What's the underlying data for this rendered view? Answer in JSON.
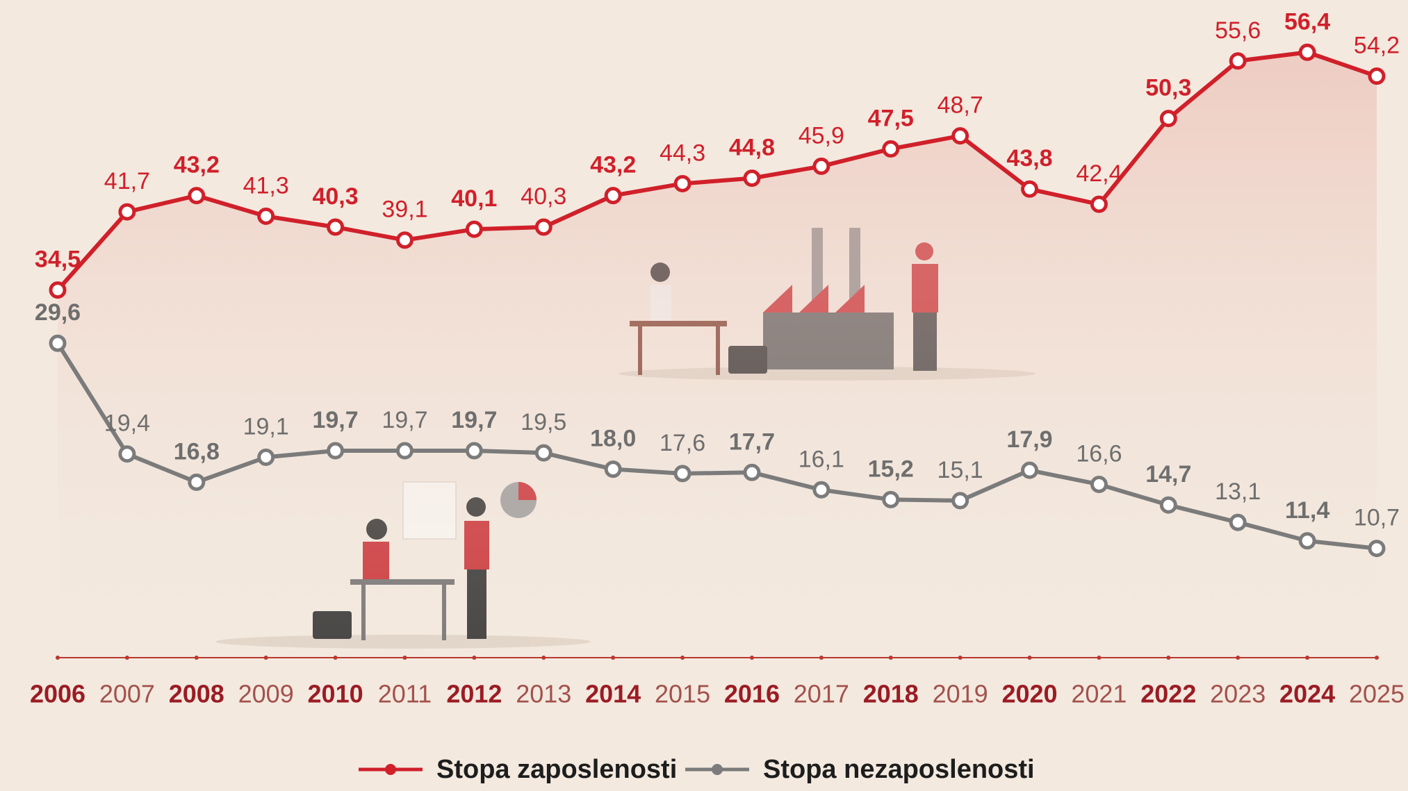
{
  "chart_data": {
    "type": "line",
    "categories": [
      "2006",
      "2007",
      "2008",
      "2009",
      "2010",
      "2011",
      "2012",
      "2013",
      "2014",
      "2015",
      "2016",
      "2017",
      "2018",
      "2019",
      "2020",
      "2021",
      "2022",
      "2023",
      "2024",
      "2025"
    ],
    "ylim": [
      0,
      60
    ],
    "series": [
      {
        "name": "Stopa zaposlenosti",
        "color": "#d0202a",
        "values": [
          34.5,
          41.7,
          43.2,
          41.3,
          40.3,
          39.1,
          40.1,
          40.3,
          43.2,
          44.3,
          44.8,
          45.9,
          47.5,
          48.7,
          43.8,
          42.4,
          50.3,
          55.6,
          56.4,
          54.2
        ],
        "value_labels": [
          "34,5",
          "41,7",
          "43,2",
          "41,3",
          "40,3",
          "39,1",
          "40,1",
          "40,3",
          "43,2",
          "44,3",
          "44,8",
          "45,9",
          "47,5",
          "48,7",
          "43,8",
          "42,4",
          "50,3",
          "55,6",
          "56,4",
          "54,2"
        ]
      },
      {
        "name": "Stopa nezaposlenosti",
        "color": "#7b7b7b",
        "values": [
          29.6,
          19.4,
          16.8,
          19.1,
          19.7,
          19.7,
          19.7,
          19.5,
          18.0,
          17.6,
          17.7,
          16.1,
          15.2,
          15.1,
          17.9,
          16.6,
          14.7,
          13.1,
          11.4,
          10.7
        ],
        "value_labels": [
          "29,6",
          "19,4",
          "16,8",
          "19,1",
          "19,7",
          "19,7",
          "19,7",
          "19,5",
          "18,0",
          "17,6",
          "17,7",
          "16,1",
          "15,2",
          "15,1",
          "17,9",
          "16,6",
          "14,7",
          "13,1",
          "11,4",
          "10,7"
        ]
      }
    ]
  }
}
